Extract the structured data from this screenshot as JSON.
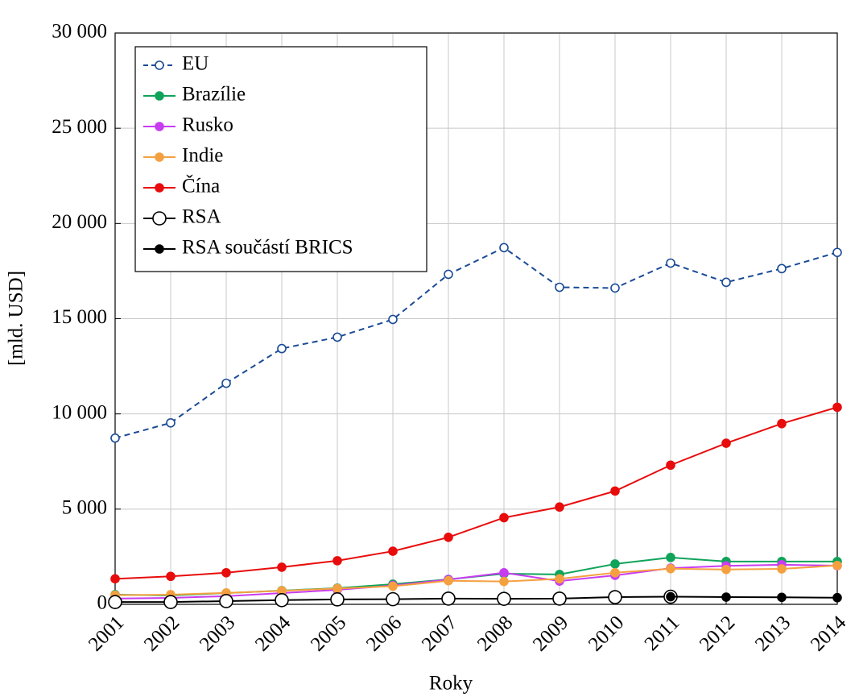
{
  "chart_data": {
    "type": "line",
    "x_label": "Roky",
    "y_label": "[mld. USD]",
    "x": [
      2001,
      2002,
      2003,
      2004,
      2005,
      2006,
      2007,
      2008,
      2009,
      2010,
      2011,
      2012,
      2013,
      2014
    ],
    "xlim": [
      2001,
      2014
    ],
    "xticks": [
      2001,
      2002,
      2003,
      2004,
      2005,
      2006,
      2007,
      2008,
      2009,
      2010,
      2011,
      2012,
      2013,
      2014
    ],
    "ylim": [
      0,
      30000
    ],
    "yticks": [
      0,
      {
        "value": 5000,
        "label": "5 000"
      },
      {
        "value": 10000,
        "label": "10 000"
      },
      {
        "value": 15000,
        "label": "15 000"
      },
      {
        "value": 20000,
        "label": "20 000"
      },
      {
        "value": 25000,
        "label": "25 000"
      },
      {
        "value": 30000,
        "label": "30 000"
      }
    ],
    "grid": true,
    "legend": "upper left",
    "series": [
      {
        "name": "EU",
        "color": "#1a4a96",
        "linestyle": "dashed",
        "marker": "open",
        "values": [
          8730,
          9530,
          11610,
          13430,
          14030,
          14960,
          17330,
          18730,
          16650,
          16610,
          17920,
          16910,
          17630,
          18480
        ]
      },
      {
        "name": "Brazílie",
        "color": "#10a35a",
        "linestyle": "solid",
        "marker": "filled",
        "values": [
          510,
          470,
          590,
          720,
          850,
          1060,
          1310,
          1610,
          1570,
          2120,
          2460,
          2250,
          2250,
          2250
        ]
      },
      {
        "name": "Rusko",
        "color": "#c83cf0",
        "linestyle": "solid",
        "marker": "filled",
        "values": [
          300,
          340,
          430,
          590,
          760,
          990,
          1300,
          1660,
          1220,
          1520,
          1900,
          2020,
          2080,
          2030
        ]
      },
      {
        "name": "Indie",
        "color": "#f5a040",
        "linestyle": "solid",
        "marker": "filled",
        "values": [
          480,
          510,
          600,
          710,
          830,
          950,
          1240,
          1200,
          1340,
          1660,
          1870,
          1830,
          1860,
          2040
        ]
      },
      {
        "name": "Čína",
        "color": "#e80c0c",
        "linestyle": "solid",
        "marker": "filled",
        "values": [
          1340,
          1470,
          1660,
          1950,
          2290,
          2790,
          3520,
          4550,
          5110,
          5950,
          7310,
          8460,
          9490,
          10350
        ]
      },
      {
        "name": "RSA",
        "color": "#000000",
        "linestyle": "solid",
        "marker": "open-large",
        "values": [
          120,
          120,
          170,
          220,
          260,
          270,
          300,
          290,
          300,
          380,
          400,
          null,
          null,
          null
        ]
      },
      {
        "name": "RSA součástí BRICS",
        "color": "#000000",
        "linestyle": "solid",
        "marker": "filled",
        "values": [
          null,
          null,
          null,
          null,
          null,
          null,
          null,
          null,
          null,
          null,
          400,
          380,
          370,
          350
        ]
      }
    ]
  }
}
